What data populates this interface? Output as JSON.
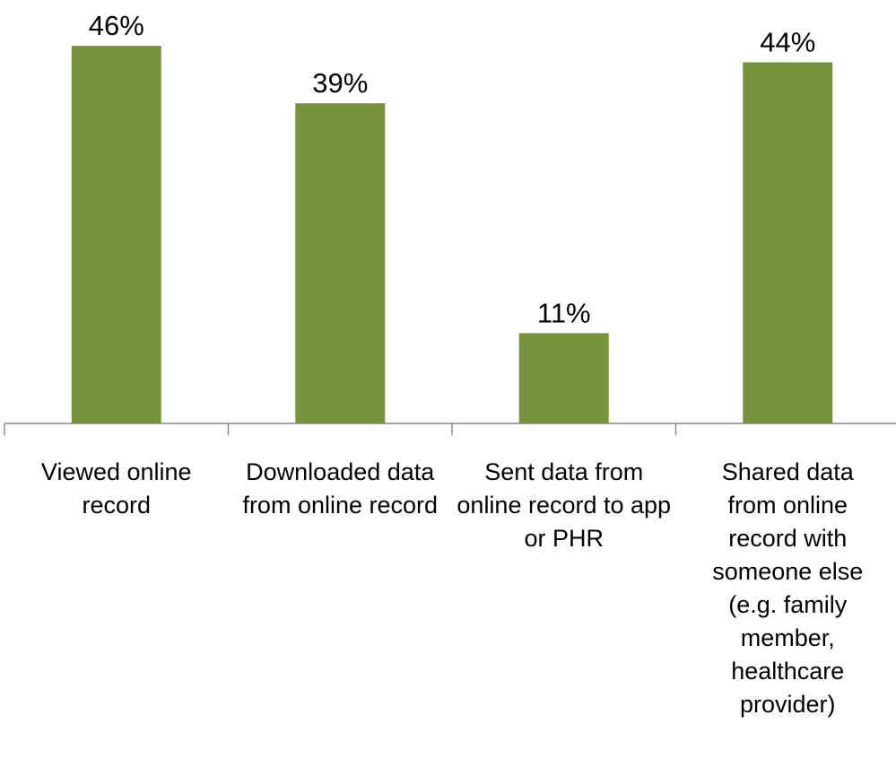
{
  "chart_data": {
    "type": "bar",
    "categories": [
      "Viewed online record",
      "Downloaded data from online record",
      "Sent data from online record to app or PHR",
      "Shared data from online record with someone else (e.g. family member, healthcare provider)"
    ],
    "values": [
      46,
      39,
      11,
      44
    ],
    "value_labels": [
      "46%",
      "39%",
      "11%",
      "44%"
    ],
    "color": "#77933c",
    "ylim": [
      0,
      50
    ]
  }
}
